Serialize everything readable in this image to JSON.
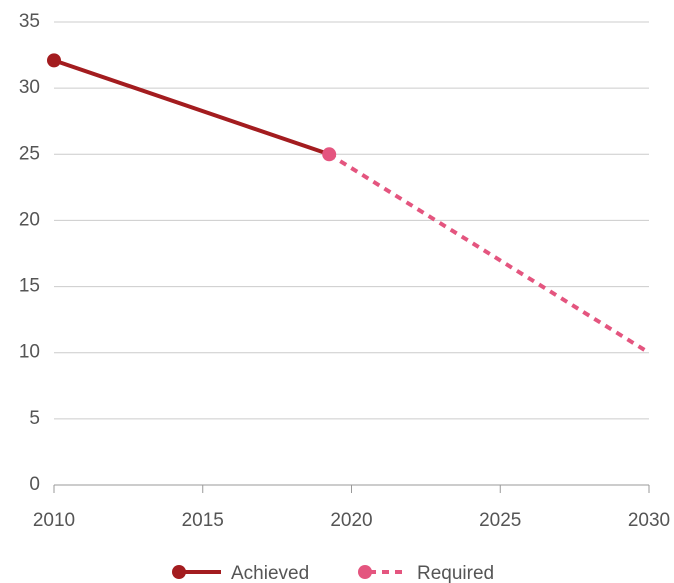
{
  "chart_data": {
    "type": "line",
    "series": [
      {
        "name": "Achieved",
        "color": "#a31c1f",
        "line_style": "solid",
        "x": [
          2010,
          2019.25
        ],
        "values": [
          32.1,
          25
        ]
      },
      {
        "name": "Required",
        "color": "#e4557f",
        "line_style": "dashed",
        "x": [
          2019.25,
          2030
        ],
        "values": [
          25,
          10
        ]
      }
    ],
    "xlim": [
      2010,
      2030
    ],
    "xticks": [
      2010,
      2015,
      2020,
      2025,
      2030
    ],
    "ylim": [
      0,
      35
    ],
    "yticks": [
      0,
      5,
      10,
      15,
      20,
      25,
      30,
      35
    ],
    "grid": true,
    "legend": "bottom"
  }
}
